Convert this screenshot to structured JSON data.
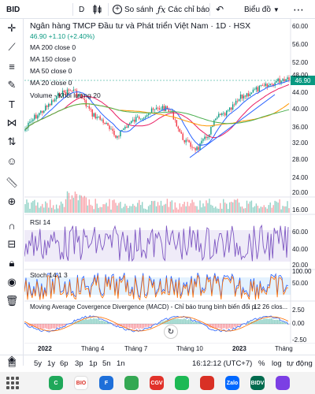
{
  "toolbar": {
    "symbol": "BID",
    "interval": "D",
    "candle_icon": "candles-icon",
    "compare_label": "So sánh",
    "indicators_label": "Các chỉ báo",
    "chart_label": "Biểu đồ",
    "more_icon": "more-icon"
  },
  "legend": {
    "title": "Ngân hàng TMCP Đầu tư và Phát triển Việt Nam · 1D · HSX",
    "ohlc": "46.90 +1.10 (+2.40%)",
    "ma": [
      "MA 200 close 0",
      "MA 150 close 0",
      "MA 50 close 0",
      "MA 20 close 0"
    ],
    "volume": "Volume - Khối lượng 20",
    "rsi": "RSI 14",
    "stoch": "Stoch 14 1 3",
    "macd": "Moving Average Covergence Divergence (MACD) - Chỉ báo trung bình biến đổi p...",
    "macd_params": "12 26 clos..."
  },
  "price_tag": "46.90",
  "axis": {
    "price": [
      "60.00",
      "56.00",
      "52.00",
      "48.00",
      "44.00",
      "40.00",
      "36.00",
      "32.00",
      "28.00",
      "24.00",
      "20.00",
      "16.00"
    ],
    "rsi": [
      "60.00",
      "40.00",
      "20.00"
    ],
    "stoch": [
      "100.00",
      "50.00"
    ],
    "macd": [
      "2.50",
      "0.00",
      "-2.50"
    ]
  },
  "x_labels": [
    {
      "text": "2022",
      "bold": true
    },
    {
      "text": "Tháng 4",
      "bold": false
    },
    {
      "text": "Tháng 7",
      "bold": false
    },
    {
      "text": "Tháng 10",
      "bold": false
    },
    {
      "text": "2023",
      "bold": true
    },
    {
      "text": "Tháng",
      "bold": false
    }
  ],
  "bottom": {
    "ranges": [
      "5y",
      "1y",
      "6p",
      "3p",
      "1p",
      "5n",
      "1n"
    ],
    "time": "16:12:12 (UTC+7)",
    "pct": "%",
    "log": "log",
    "auto": "tự động"
  },
  "tools": [
    "crosshair-icon",
    "trendline-icon",
    "fib-icon",
    "brush-icon",
    "text-icon",
    "pattern-icon",
    "forecast-icon",
    "emoji-icon",
    "ruler-icon",
    "zoom-icon",
    "magnet-icon",
    "lock-drawing-icon",
    "lock-icon",
    "eye-icon",
    "trash-icon",
    "layers-icon"
  ],
  "nav_apps": [
    {
      "name": "app-green-icon",
      "color": "#1fa85a",
      "text": "C"
    },
    {
      "name": "app-bio-icon",
      "color": "#ffffff",
      "text": "BIO"
    },
    {
      "name": "app-blue-icon",
      "color": "#1e6fd9",
      "text": "F"
    },
    {
      "name": "app-chrome-icon",
      "color": "#34a853",
      "text": ""
    },
    {
      "name": "app-cgv-icon",
      "color": "#e1322a",
      "text": "CGV"
    },
    {
      "name": "app-spotify-icon",
      "color": "#1db954",
      "text": ""
    },
    {
      "name": "app-red-icon",
      "color": "#d93025",
      "text": ""
    },
    {
      "name": "app-zalo-icon",
      "color": "#0068ff",
      "text": "Zalo"
    },
    {
      "name": "app-bidv-icon",
      "color": "#006b4e",
      "text": "BIDV"
    },
    {
      "name": "app-messenger-icon",
      "color": "#7b3fe4",
      "text": ""
    }
  ],
  "colors": {
    "up": "#089981",
    "down": "#f23645",
    "ma20": "#2962ff",
    "ma50": "#e91e63",
    "ma150": "#ff9800",
    "ma200": "#4caf50",
    "rsi_fill": "#7e57c2",
    "stoch_fill": "#2196f3"
  }
}
